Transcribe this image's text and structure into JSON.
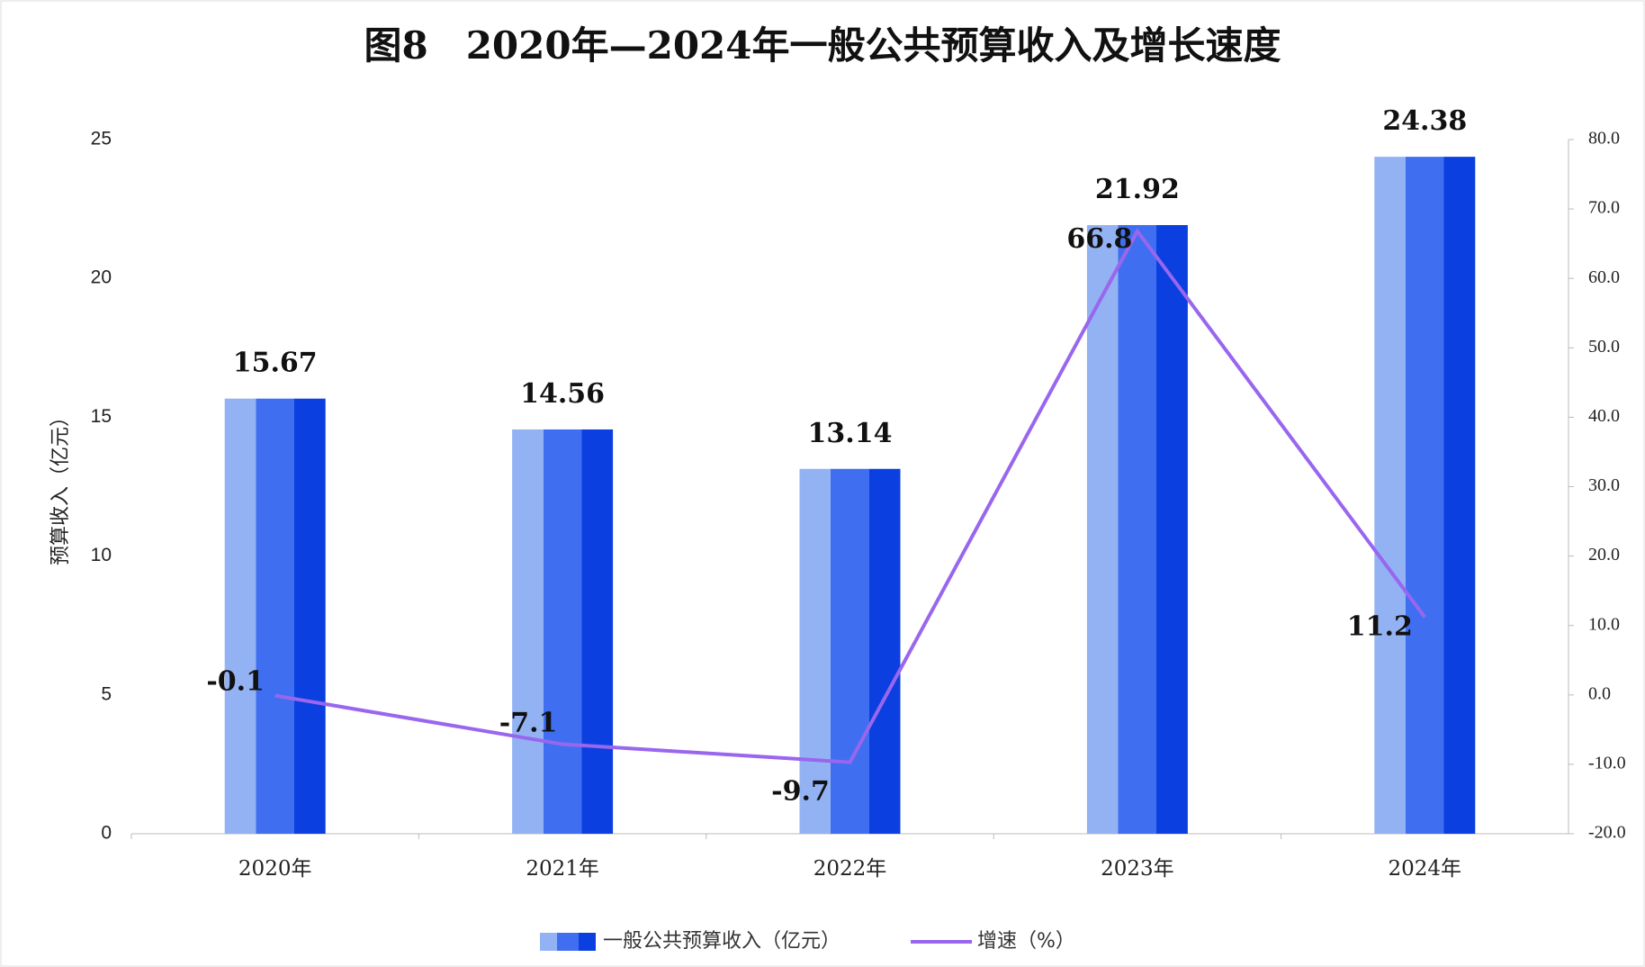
{
  "chart_data": {
    "type": "bar-line",
    "title": "图8　2020年—2024年一般公共预算收入及增长速度",
    "y_label": "预算收入（亿元）",
    "categories": [
      "2020年",
      "2021年",
      "2022年",
      "2023年",
      "2024年"
    ],
    "series": [
      {
        "name": "一般公共预算收入（亿元）",
        "type": "bar",
        "color": "#3f6ff0",
        "values": [
          15.67,
          14.56,
          13.14,
          21.92,
          24.38
        ]
      },
      {
        "name": "增速（%）",
        "type": "line",
        "axis": "y2",
        "color": "#9966ee",
        "values": [
          -0.1,
          -7.1,
          -9.7,
          66.8,
          11.2
        ]
      }
    ],
    "ylim": [
      0,
      25
    ],
    "yticks": [
      0,
      5,
      10,
      15,
      20,
      25
    ],
    "y2lim": [
      -20,
      80
    ],
    "y2ticks": [
      {
        "value": -20,
        "label": "-20.0"
      },
      {
        "value": -10,
        "label": "-10.0"
      },
      {
        "value": 0,
        "label": "0.0"
      },
      {
        "value": 10,
        "label": "10.0"
      },
      {
        "value": 20,
        "label": "20.0"
      },
      {
        "value": 30,
        "label": "30.0"
      },
      {
        "value": 40,
        "label": "40.0"
      },
      {
        "value": 50,
        "label": "50.0"
      },
      {
        "value": 60,
        "label": "60.0"
      },
      {
        "value": 70,
        "label": "70.0"
      },
      {
        "value": 80,
        "label": "80.0"
      }
    ],
    "legend": "bottom"
  }
}
